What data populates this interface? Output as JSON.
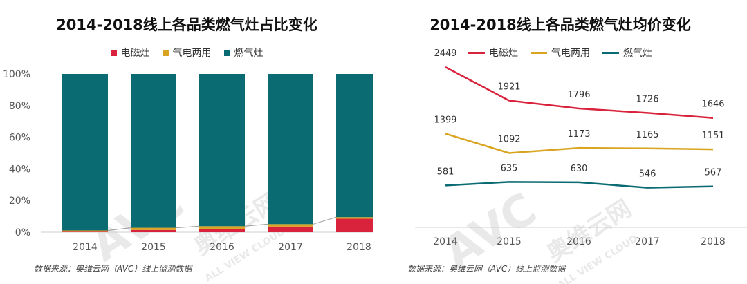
{
  "source_text": "数据来源：奥维云网（AVC）线上监测数据",
  "watermark": {
    "logo": "AVC",
    "brand": "奥维云网",
    "brand_en": "ALL VIEW CLOUD"
  },
  "chart_data": [
    {
      "type": "bar",
      "stacked": true,
      "title": "2014-2018线上各品类燃气灶占比变化",
      "categories": [
        "2014",
        "2015",
        "2016",
        "2017",
        "2018"
      ],
      "series": [
        {
          "name": "电磁灶",
          "color": "#d9223b",
          "values": [
            0.3,
            1.4,
            2.2,
            3.6,
            8.5
          ]
        },
        {
          "name": "气电两用",
          "color": "#d9a520",
          "values": [
            0.8,
            1.4,
            1.6,
            1.5,
            1.0
          ]
        },
        {
          "name": "燃气灶",
          "color": "#0b6b73",
          "values": [
            98.9,
            97.2,
            96.2,
            94.9,
            90.5
          ]
        }
      ],
      "yticks": [
        "0%",
        "20%",
        "40%",
        "60%",
        "80%",
        "100%"
      ],
      "ylim": [
        0,
        100
      ],
      "legend": "top-center",
      "grid": false
    },
    {
      "type": "line",
      "title": "2014-2018线上各品类燃气灶均价变化",
      "categories": [
        "2014",
        "2015",
        "2016",
        "2017",
        "2018"
      ],
      "series": [
        {
          "name": "电磁灶",
          "color": "#d9223b",
          "values": [
            2449,
            1921,
            1796,
            1726,
            1646
          ]
        },
        {
          "name": "气电两用",
          "color": "#d9a520",
          "values": [
            1399,
            1092,
            1173,
            1165,
            1151
          ]
        },
        {
          "name": "燃气灶",
          "color": "#0b6b73",
          "values": [
            581,
            635,
            630,
            546,
            567
          ]
        }
      ],
      "legend": "top-center",
      "grid": false
    }
  ]
}
